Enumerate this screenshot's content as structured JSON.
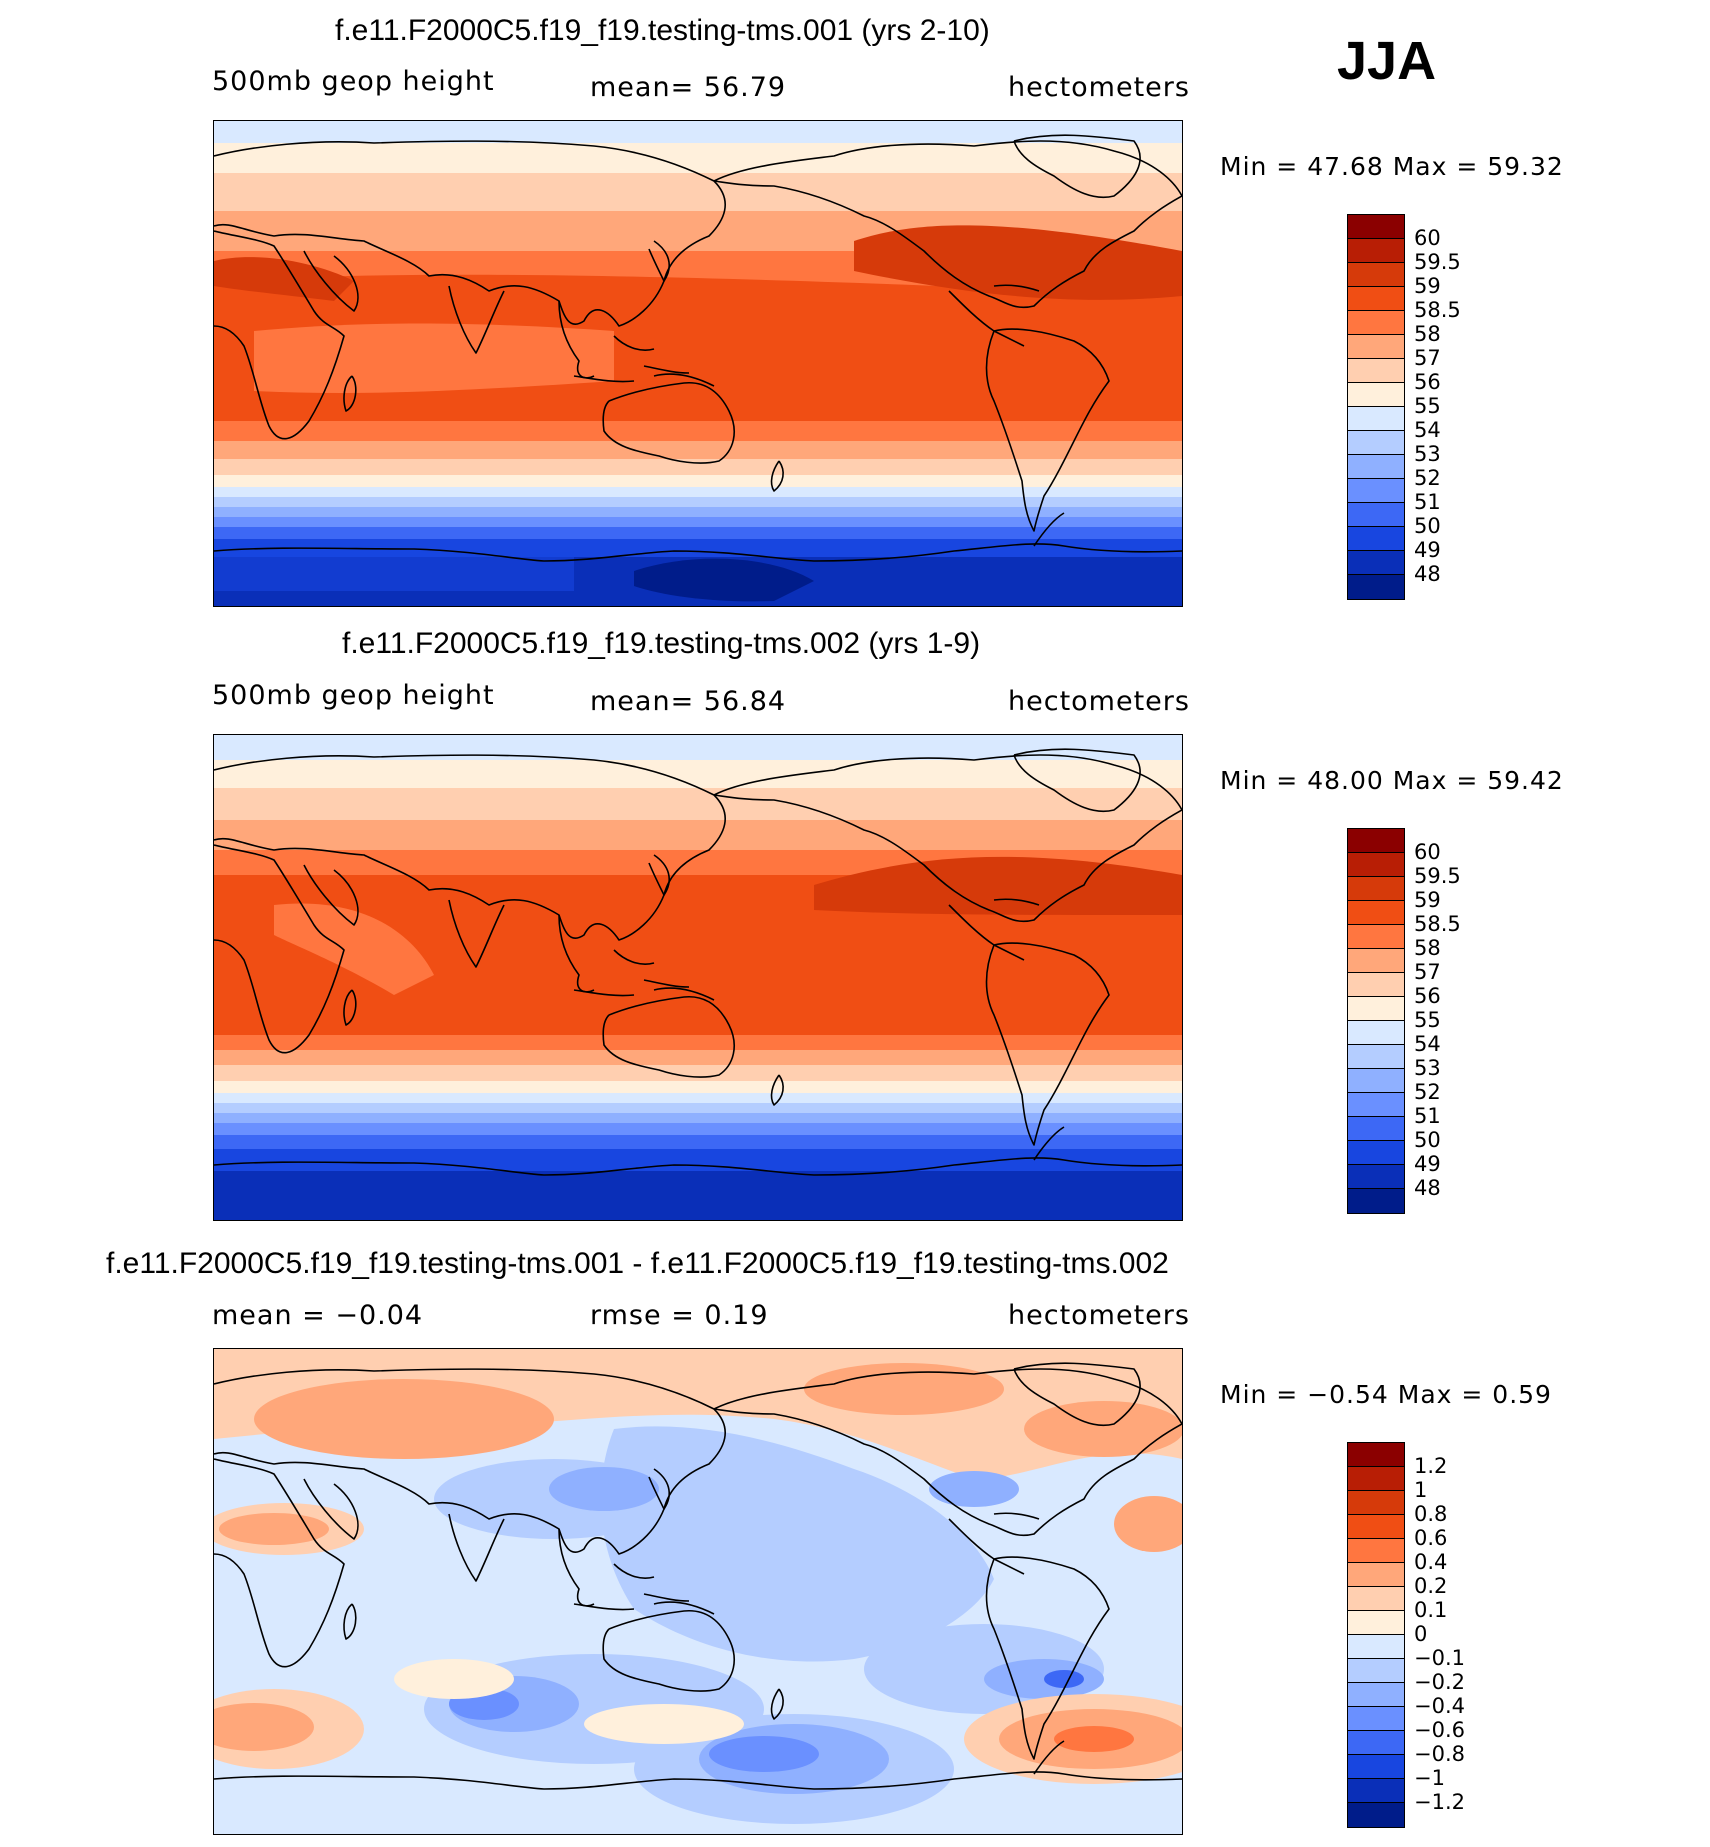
{
  "season": "JJA",
  "panels": [
    {
      "title": "f.e11.F2000C5.f19_f19.testing-tms.001 (yrs 2-10)",
      "left_label": "500mb  geop  height",
      "center_label": "mean=   56.79",
      "right_label": "hectometers",
      "minmax": "Min  =    47.68  Max  =    59.32",
      "map_kind": "height"
    },
    {
      "title": "f.e11.F2000C5.f19_f19.testing-tms.002 (yrs 1-9)",
      "left_label": "500mb  geop  height",
      "center_label": "mean=   56.84",
      "right_label": "hectometers",
      "minmax": "Min  =    48.00  Max  =    59.42",
      "map_kind": "height"
    },
    {
      "title": "f.e11.F2000C5.f19_f19.testing-tms.001 - f.e11.F2000C5.f19_f19.testing-tms.002",
      "left_label": "mean  =   −0.04",
      "center_label": "rmse  =     0.19",
      "right_label": "hectometers",
      "minmax": "Min  =   −0.54  Max  =      0.59",
      "map_kind": "difference"
    }
  ],
  "colorbar_height": {
    "labels": [
      "60",
      "59.5",
      "59",
      "58.5",
      "58",
      "57",
      "56",
      "55",
      "54",
      "53",
      "52",
      "51",
      "50",
      "49",
      "48"
    ],
    "colors": [
      "#8b0000",
      "#b81e05",
      "#d63a0a",
      "#f04e14",
      "#ff7640",
      "#ffa77a",
      "#ffcfb0",
      "#fff0dc",
      "#d9e9ff",
      "#b4cdff",
      "#8fb0ff",
      "#6a90ff",
      "#3d68f5",
      "#1846e0",
      "#0a2fb8",
      "#001c8a"
    ]
  },
  "colorbar_diff": {
    "labels": [
      "1.2",
      "1",
      "0.8",
      "0.6",
      "0.4",
      "0.2",
      "0.1",
      "0",
      "−0.1",
      "−0.2",
      "−0.4",
      "−0.6",
      "−0.8",
      "−1",
      "−1.2"
    ],
    "colors": [
      "#8b0000",
      "#b81e05",
      "#d63a0a",
      "#f04e14",
      "#ff7640",
      "#ffa77a",
      "#ffcfb0",
      "#fff0dc",
      "#d9e9ff",
      "#b4cdff",
      "#8fb0ff",
      "#6a90ff",
      "#3d68f5",
      "#1846e0",
      "#0a2fb8",
      "#001c8a"
    ]
  }
}
